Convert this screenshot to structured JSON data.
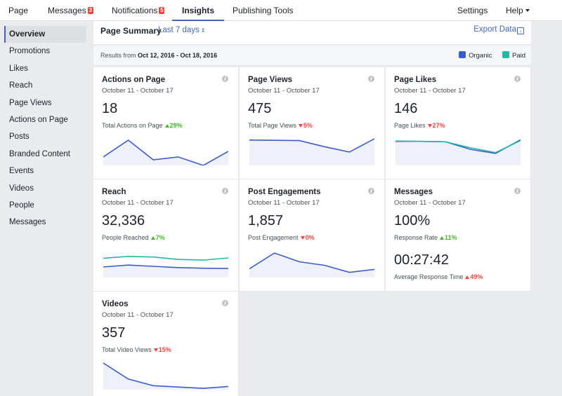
{
  "nav": {
    "page": "Page",
    "messages": "Messages",
    "messages_badge": "3",
    "notifications": "Notifications",
    "notifications_badge": "5",
    "insights": "Insights",
    "publishing": "Publishing Tools",
    "settings": "Settings",
    "help": "Help"
  },
  "sidebar": {
    "items": [
      {
        "label": "Overview"
      },
      {
        "label": "Promotions"
      },
      {
        "label": "Likes"
      },
      {
        "label": "Reach"
      },
      {
        "label": "Page Views"
      },
      {
        "label": "Actions on Page"
      },
      {
        "label": "Posts"
      },
      {
        "label": "Branded Content"
      },
      {
        "label": "Events"
      },
      {
        "label": "Videos"
      },
      {
        "label": "People"
      },
      {
        "label": "Messages"
      }
    ]
  },
  "summary": {
    "title": "Page Summary",
    "range": "Last 7 days",
    "export": "Export Data",
    "results_prefix": "Results from ",
    "results_range": "Oct 12, 2016 - Oct 18, 2016",
    "legend": [
      {
        "name": "Organic",
        "color": "#3b5ccc"
      },
      {
        "name": "Paid",
        "color": "#22b8a6"
      }
    ]
  },
  "cards": [
    {
      "title": "Actions on Page",
      "date": "October 11 - October 17",
      "value": "18",
      "label": "Total Actions on Page",
      "change": "29%",
      "dir": "up",
      "chart": {
        "organic": [
          3,
          9,
          2,
          3,
          0,
          5
        ],
        "paid": null,
        "ylim": [
          0,
          10
        ]
      }
    },
    {
      "title": "Page Views",
      "date": "October 11 - October 17",
      "value": "475",
      "label": "Total Page Views",
      "change": "5%",
      "dir": "down",
      "chart": {
        "organic": [
          95,
          94,
          93,
          70,
          50,
          100
        ],
        "paid": null,
        "ylim": [
          0,
          105
        ]
      }
    },
    {
      "title": "Page Likes",
      "date": "October 11 - October 17",
      "value": "146",
      "label": "Page Likes",
      "change": "27%",
      "dir": "down",
      "chart": {
        "organic": [
          30,
          30,
          29.5,
          20,
          15,
          32
        ],
        "paid": [
          30.5,
          30,
          29.5,
          22,
          16,
          31
        ],
        "ylim": [
          0,
          35
        ]
      }
    },
    {
      "title": "Reach",
      "date": "October 11 - October 17",
      "value": "32,336",
      "label": "People Reached",
      "change": "7%",
      "dir": "up",
      "chart": {
        "organic": [
          3.4,
          4.0,
          3.6,
          3.2,
          3.0,
          2.9
        ],
        "paid": [
          6.2,
          6.8,
          6.6,
          5.8,
          5.6,
          6.3
        ],
        "ylim": [
          0,
          9
        ]
      }
    },
    {
      "title": "Post Engagements",
      "date": "October 11 - October 17",
      "value": "1,857",
      "label": "Post Engagement",
      "change": "0%",
      "dir": "down",
      "chart": {
        "organic": [
          150,
          420,
          270,
          210,
          90,
          140
        ],
        "paid": null,
        "ylim": [
          0,
          480
        ]
      }
    },
    {
      "title": "Messages",
      "date": "October 11 - October 17",
      "value": "100%",
      "label": "Response Rate",
      "change": "11%",
      "dir": "up",
      "value2": "00:27:42",
      "label2": "Average Response Time",
      "change2": "49%",
      "dir2": "up_red",
      "chart": null
    },
    {
      "title": "Videos",
      "date": "October 11 - October 17",
      "value": "357",
      "label": "Total Video Views",
      "change": "15%",
      "dir": "down",
      "chart": {
        "organic": [
          100,
          40,
          15,
          10,
          5,
          12
        ],
        "paid": null,
        "ylim": [
          0,
          105
        ]
      }
    }
  ]
}
